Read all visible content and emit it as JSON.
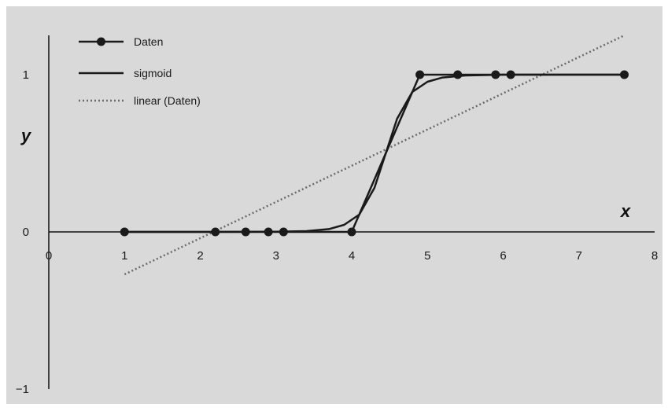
{
  "chart_data": {
    "type": "line",
    "xlabel": "x",
    "ylabel": "y",
    "xlim": [
      0,
      8
    ],
    "ylim": [
      -1,
      1.25
    ],
    "x_ticks": [
      "0",
      "1",
      "2",
      "3",
      "4",
      "5",
      "6",
      "7",
      "8"
    ],
    "y_ticks": [
      "−1",
      "0",
      "1"
    ],
    "legend_position": "top-left",
    "grid": false,
    "series": [
      {
        "name": "Daten",
        "style": "line-with-markers",
        "x": [
          1,
          2.2,
          2.6,
          2.9,
          3.1,
          4,
          4.9,
          5.4,
          5.9,
          6.1,
          7.6
        ],
        "y": [
          0,
          0,
          0,
          0,
          0,
          0,
          1,
          1,
          1,
          1,
          1
        ]
      },
      {
        "name": "sigmoid",
        "style": "solid",
        "x": [
          1,
          2,
          3,
          3.4,
          3.7,
          3.9,
          4.1,
          4.3,
          4.45,
          4.6,
          4.8,
          5.0,
          5.2,
          5.5,
          6,
          7,
          7.6
        ],
        "y": [
          0,
          0,
          0.001,
          0.005,
          0.018,
          0.045,
          0.11,
          0.28,
          0.5,
          0.72,
          0.89,
          0.955,
          0.982,
          0.995,
          1,
          1,
          1
        ]
      },
      {
        "name": "linear (Daten)",
        "style": "dotted",
        "x": [
          1,
          7.6
        ],
        "y": [
          -0.27,
          1.25
        ]
      }
    ]
  },
  "colors": {
    "background": "#d9d9d9",
    "line": "#1a1a1a",
    "trend": "#6b6b6b"
  }
}
